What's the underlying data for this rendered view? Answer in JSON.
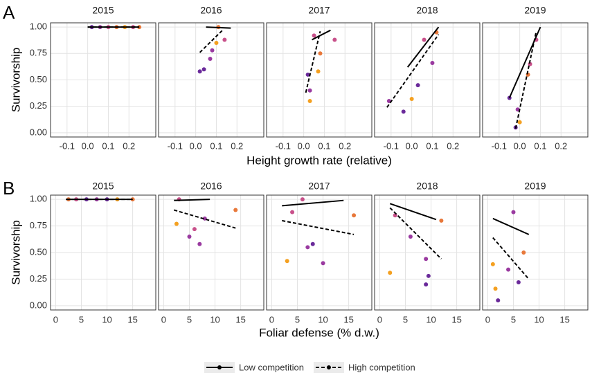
{
  "chart_data": [
    {
      "type": "scatter",
      "panel_label": "A",
      "xlabel": "Height growth rate (relative)",
      "ylabel": "Survivorship",
      "xlim": [
        -0.18,
        0.33
      ],
      "xticks": [
        -0.1,
        {
          "value": 0,
          "label": "0.0"
        },
        0.1,
        0.2
      ],
      "ylim": [
        -0.04,
        1.04
      ],
      "yticks": [
        {
          "value": 0,
          "label": "0.00"
        },
        {
          "value": 0.25,
          "label": "0.25"
        },
        {
          "value": 0.5,
          "label": "0.50"
        },
        {
          "value": 0.75,
          "label": "0.75"
        },
        {
          "value": 1,
          "label": "1.00"
        }
      ],
      "grid": true,
      "facets": [
        {
          "title": "2015",
          "fits": [
            {
              "x": [
                0.0,
                0.25
              ],
              "y": [
                1,
                1
              ]
            },
            {
              "x": [
                0.0,
                0.25
              ],
              "y": [
                1,
                1
              ]
            }
          ],
          "points": {
            "x": [
              0.02,
              0.06,
              0.1,
              0.14,
              0.18,
              0.22,
              0.25
            ],
            "y": [
              1,
              1,
              1,
              1,
              1,
              1,
              1
            ],
            "colors": [
              "#6a2a9a",
              "#9a3aa0",
              "#c8508a",
              "#e8783a",
              "#f4a020",
              "#c8508a",
              "#e8783a"
            ]
          }
        },
        {
          "title": "2016",
          "fits": [
            {
              "x": [
                0.05,
                0.17
              ],
              "y": [
                1.0,
                0.99
              ]
            },
            {
              "x": [
                0.02,
                0.13
              ],
              "y": [
                0.76,
                0.97
              ]
            }
          ],
          "points": {
            "x": [
              0.11,
              0.14,
              0.08,
              0.07,
              0.02,
              0.04,
              0.1
            ],
            "y": [
              1.0,
              0.88,
              0.78,
              0.7,
              0.58,
              0.6,
              0.85
            ],
            "colors": [
              "#e8783a",
              "#c8508a",
              "#9a3aa0",
              "#9a3aa0",
              "#6a2a9a",
              "#6a2a9a",
              "#f4a020"
            ]
          }
        },
        {
          "title": "2017",
          "fits": [
            {
              "x": [
                0.04,
                0.13
              ],
              "y": [
                0.88,
                0.97
              ]
            },
            {
              "x": [
                0.01,
                0.08
              ],
              "y": [
                0.38,
                0.96
              ]
            }
          ],
          "points": {
            "x": [
              0.05,
              0.02,
              0.03,
              0.15,
              0.08,
              0.07,
              0.03
            ],
            "y": [
              0.92,
              0.55,
              0.4,
              0.88,
              0.75,
              0.58,
              0.3
            ],
            "colors": [
              "#c8508a",
              "#6a2a9a",
              "#9a3aa0",
              "#c8508a",
              "#e8783a",
              "#f4a020",
              "#f4a020"
            ]
          }
        },
        {
          "title": "2018",
          "fits": [
            {
              "x": [
                -0.02,
                0.13
              ],
              "y": [
                0.62,
                1.0
              ]
            },
            {
              "x": [
                -0.12,
                0.13
              ],
              "y": [
                0.24,
                0.93
              ]
            }
          ],
          "points": {
            "x": [
              -0.11,
              -0.04,
              0.0,
              0.03,
              0.06,
              0.1,
              0.12
            ],
            "y": [
              0.3,
              0.2,
              0.32,
              0.45,
              0.88,
              0.66,
              0.95
            ],
            "colors": [
              "#9a3aa0",
              "#6a2a9a",
              "#f4a020",
              "#6a2a9a",
              "#c8508a",
              "#9a3aa0",
              "#e8783a"
            ]
          }
        },
        {
          "title": "2019",
          "fits": [
            {
              "x": [
                -0.05,
                0.1
              ],
              "y": [
                0.33,
                1.0
              ]
            },
            {
              "x": [
                -0.02,
                0.08
              ],
              "y": [
                0.04,
                0.96
              ]
            }
          ],
          "points": {
            "x": [
              -0.05,
              -0.01,
              0.0,
              0.05,
              0.08,
              0.04,
              -0.02
            ],
            "y": [
              0.33,
              0.22,
              0.1,
              0.65,
              0.88,
              0.55,
              0.05
            ],
            "colors": [
              "#6a2a9a",
              "#9a3aa0",
              "#f4a020",
              "#c8508a",
              "#c8508a",
              "#e8783a",
              "#6a2a9a"
            ]
          }
        }
      ]
    },
    {
      "type": "scatter",
      "panel_label": "B",
      "xlabel": "Foliar defense (% d.w.)",
      "ylabel": "Survivorship",
      "xlim": [
        -1,
        19.5
      ],
      "xticks": [
        0,
        5,
        10,
        15
      ],
      "ylim": [
        -0.04,
        1.04
      ],
      "yticks": [
        {
          "value": 0,
          "label": "0.00"
        },
        {
          "value": 0.25,
          "label": "0.25"
        },
        {
          "value": 0.5,
          "label": "0.50"
        },
        {
          "value": 0.75,
          "label": "0.75"
        },
        {
          "value": 1,
          "label": "1.00"
        }
      ],
      "grid": true,
      "facets": [
        {
          "title": "2015",
          "fits": [
            {
              "x": [
                2,
                15
              ],
              "y": [
                1,
                1
              ]
            },
            {
              "x": [
                2,
                15
              ],
              "y": [
                1,
                1
              ]
            }
          ],
          "points": {
            "x": [
              2.5,
              4,
              6,
              8,
              10,
              12,
              15
            ],
            "y": [
              1,
              1,
              1,
              1,
              1,
              1,
              1
            ],
            "colors": [
              "#e8783a",
              "#c8508a",
              "#6a2a9a",
              "#9a3aa0",
              "#6a2a9a",
              "#f4a020",
              "#e8783a"
            ]
          }
        },
        {
          "title": "2016",
          "fits": [
            {
              "x": [
                2,
                9
              ],
              "y": [
                0.99,
                1.0
              ]
            },
            {
              "x": [
                2,
                14
              ],
              "y": [
                0.9,
                0.73
              ]
            }
          ],
          "points": {
            "x": [
              2.5,
              5,
              7,
              6,
              14,
              3,
              8
            ],
            "y": [
              0.77,
              0.65,
              0.58,
              0.72,
              0.9,
              1.0,
              0.82
            ],
            "colors": [
              "#f4a020",
              "#9a3aa0",
              "#9a3aa0",
              "#c8508a",
              "#e8783a",
              "#c8508a",
              "#9a3aa0"
            ]
          }
        },
        {
          "title": "2017",
          "fits": [
            {
              "x": [
                2,
                14
              ],
              "y": [
                0.94,
                0.99
              ]
            },
            {
              "x": [
                2,
                16
              ],
              "y": [
                0.8,
                0.67
              ]
            }
          ],
          "points": {
            "x": [
              3,
              7,
              8,
              10,
              16,
              4,
              6
            ],
            "y": [
              0.42,
              0.55,
              0.58,
              0.4,
              0.85,
              0.88,
              1.0
            ],
            "colors": [
              "#f4a020",
              "#9a3aa0",
              "#6a2a9a",
              "#9a3aa0",
              "#e8783a",
              "#c8508a",
              "#c8508a"
            ]
          }
        },
        {
          "title": "2018",
          "fits": [
            {
              "x": [
                2,
                11
              ],
              "y": [
                0.96,
                0.81
              ]
            },
            {
              "x": [
                2,
                12
              ],
              "y": [
                0.92,
                0.44
              ]
            }
          ],
          "points": {
            "x": [
              2,
              6,
              9,
              9.5,
              9,
              12,
              3
            ],
            "y": [
              0.31,
              0.65,
              0.44,
              0.28,
              0.2,
              0.8,
              0.85
            ],
            "colors": [
              "#f4a020",
              "#9a3aa0",
              "#9a3aa0",
              "#6a2a9a",
              "#6a2a9a",
              "#e8783a",
              "#c8508a"
            ]
          }
        },
        {
          "title": "2019",
          "fits": [
            {
              "x": [
                1,
                8
              ],
              "y": [
                0.82,
                0.67
              ]
            },
            {
              "x": [
                1,
                8
              ],
              "y": [
                0.64,
                0.25
              ]
            }
          ],
          "points": {
            "x": [
              1,
              1.5,
              2,
              4,
              5,
              6,
              7
            ],
            "y": [
              0.39,
              0.16,
              0.05,
              0.34,
              0.88,
              0.22,
              0.5
            ],
            "colors": [
              "#f4a020",
              "#f4a020",
              "#6a2a9a",
              "#9a3aa0",
              "#9a3aa0",
              "#6a2a9a",
              "#e8783a"
            ]
          }
        }
      ]
    }
  ],
  "legend": {
    "entries": [
      {
        "name": "Low competition",
        "color": "#000000",
        "dash": false
      },
      {
        "name": "High competition",
        "color": "#000000",
        "dash": true
      }
    ]
  }
}
